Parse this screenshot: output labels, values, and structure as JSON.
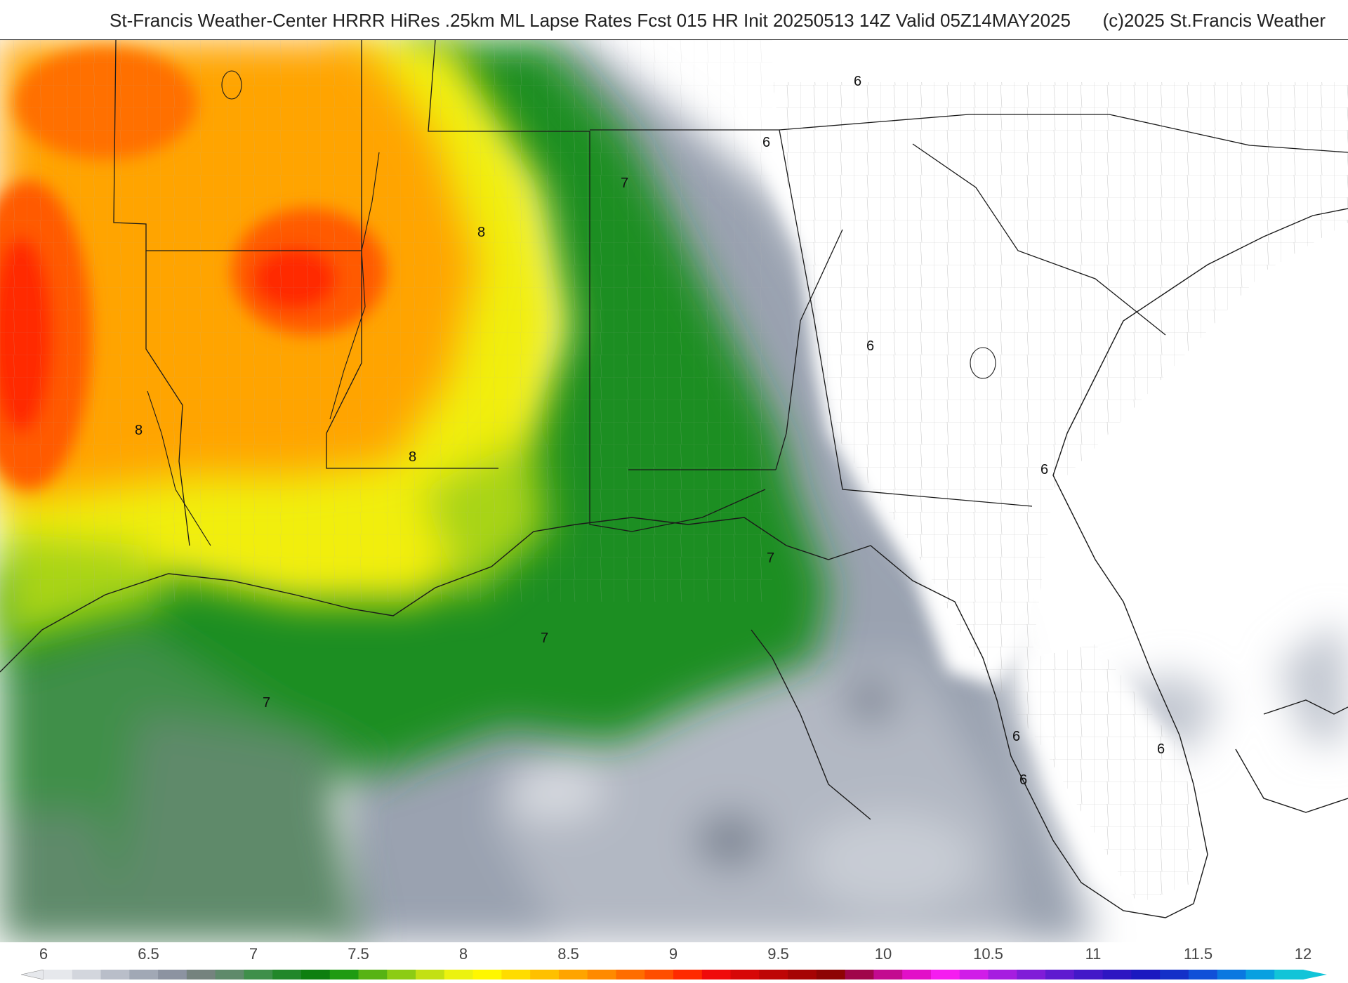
{
  "header": {
    "title": "St-Francis Weather-Center HRRR HiRes .25km ML Lapse Rates  Fcst 015 HR Init 20250513 14Z  Valid 05Z14MAY2025",
    "copyright": "(c)2025 St.Francis Weather"
  },
  "map": {
    "contour_labels": [
      {
        "text": "6",
        "name": "contour-label-6-ms"
      },
      {
        "text": "6",
        "name": "contour-label-6-ga-nw"
      },
      {
        "text": "6",
        "name": "contour-label-6-ga-c"
      },
      {
        "text": "6",
        "name": "contour-label-6-ga-se"
      },
      {
        "text": "6",
        "name": "contour-label-6-fl-w"
      },
      {
        "text": "6",
        "name": "contour-label-6-fl-sw"
      },
      {
        "text": "6",
        "name": "contour-label-6-fl-c"
      },
      {
        "text": "7",
        "name": "contour-label-7-al"
      },
      {
        "text": "7",
        "name": "contour-label-7-gulf-ne"
      },
      {
        "text": "7",
        "name": "contour-label-7-gulf-c"
      },
      {
        "text": "7",
        "name": "contour-label-7-gulf-w"
      },
      {
        "text": "8",
        "name": "contour-label-8-ar"
      },
      {
        "text": "8",
        "name": "contour-label-8-tx"
      },
      {
        "text": "8",
        "name": "contour-label-8-la"
      }
    ]
  },
  "colorbar": {
    "ticks": [
      "6",
      "6.5",
      "7",
      "7.5",
      "8",
      "8.5",
      "9",
      "9.5",
      "10",
      "10.5",
      "11",
      "11.5",
      "12"
    ],
    "colors": [
      "#e6e8ec",
      "#d3d6dd",
      "#b9bec9",
      "#a1a8b5",
      "#8c93a1",
      "#75837e",
      "#5f8a6b",
      "#3f8f4a",
      "#22872a",
      "#0e7f10",
      "#1f9b12",
      "#57b314",
      "#8ccc14",
      "#c3e013",
      "#ecf20f",
      "#fff700",
      "#ffdc00",
      "#ffc000",
      "#ffa400",
      "#ff8a00",
      "#ff6d00",
      "#ff4e00",
      "#ff2a00",
      "#f00a0a",
      "#d70707",
      "#be0505",
      "#a60404",
      "#8e0404",
      "#a0054a",
      "#c30a90",
      "#e20fc8",
      "#f51cf0",
      "#d01de8",
      "#a61de0",
      "#801cd8",
      "#5f1ad0",
      "#4318c8",
      "#2e16c2",
      "#1b18c0",
      "#1430c8",
      "#1050d8",
      "#0a78e0",
      "#08a0e0",
      "#12c4d8"
    ]
  }
}
